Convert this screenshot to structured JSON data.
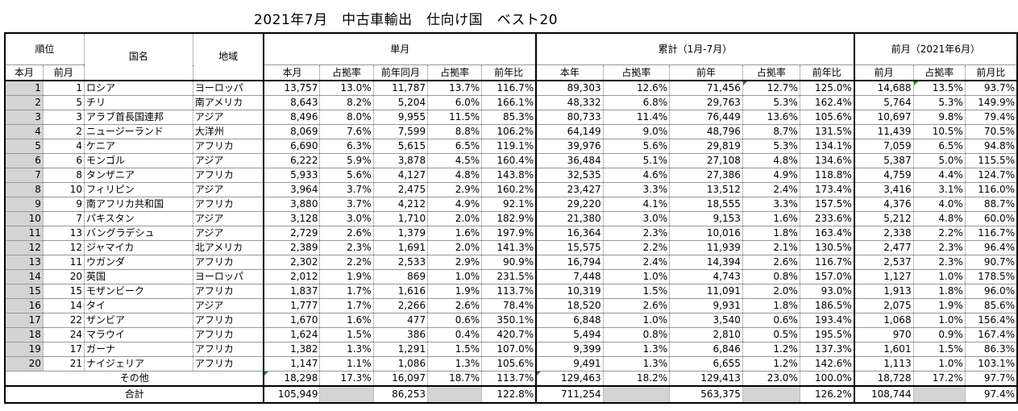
{
  "title": "2021年7月　中古車輸出　仕向け国　ベスト20",
  "header": {
    "rank": "順位",
    "country": "国名",
    "region": "地域",
    "monthly": "単月",
    "cumulative": "累計（1月-7月）",
    "prev_month_group": "前月（2021年6月）",
    "sub": {
      "rank_current": "本月",
      "rank_prev": "前月",
      "this_month": "本月",
      "share1": "占拠率",
      "prev_year_same_month": "前年同月",
      "share2": "占拠率",
      "yoy1": "前年比",
      "this_year": "本年",
      "share3": "占拠率",
      "prev_year": "前年",
      "share4": "占拠率",
      "yoy2": "前年比",
      "prev_month": "前月",
      "share5": "占拠率",
      "mom": "前月比"
    }
  },
  "rows": [
    {
      "rank": "1",
      "prev_rank": "1",
      "country": "ロシア",
      "region": "ヨーロッパ",
      "m": "13,757",
      "ms": "13.0%",
      "py": "11,787",
      "pys": "13.7%",
      "yoy": "116.7%",
      "cy": "89,303",
      "cys": "12.6%",
      "cp": "71,456",
      "cps": "12.7%",
      "cyoy": "125.0%",
      "pm": "14,688",
      "pms": "13.5%",
      "mom": "93.7%"
    },
    {
      "rank": "2",
      "prev_rank": "5",
      "country": "チリ",
      "region": "南アメリカ",
      "m": "8,643",
      "ms": "8.2%",
      "py": "5,204",
      "pys": "6.0%",
      "yoy": "166.1%",
      "cy": "48,332",
      "cys": "6.8%",
      "cp": "29,763",
      "cps": "5.3%",
      "cyoy": "162.4%",
      "pm": "5,764",
      "pms": "5.3%",
      "mom": "149.9%"
    },
    {
      "rank": "3",
      "prev_rank": "3",
      "country": "アラブ首長国連邦",
      "region": "アジア",
      "m": "8,496",
      "ms": "8.0%",
      "py": "9,955",
      "pys": "11.5%",
      "yoy": "85.3%",
      "cy": "80,733",
      "cys": "11.4%",
      "cp": "76,449",
      "cps": "13.6%",
      "cyoy": "105.6%",
      "pm": "10,697",
      "pms": "9.8%",
      "mom": "79.4%"
    },
    {
      "rank": "4",
      "prev_rank": "2",
      "country": "ニュージーランド",
      "region": "大洋州",
      "m": "8,069",
      "ms": "7.6%",
      "py": "7,599",
      "pys": "8.8%",
      "yoy": "106.2%",
      "cy": "64,149",
      "cys": "9.0%",
      "cp": "48,796",
      "cps": "8.7%",
      "cyoy": "131.5%",
      "pm": "11,439",
      "pms": "10.5%",
      "mom": "70.5%"
    },
    {
      "rank": "5",
      "prev_rank": "4",
      "country": "ケニア",
      "region": "アフリカ",
      "m": "6,690",
      "ms": "6.3%",
      "py": "5,615",
      "pys": "6.5%",
      "yoy": "119.1%",
      "cy": "39,976",
      "cys": "5.6%",
      "cp": "29,819",
      "cps": "5.3%",
      "cyoy": "134.1%",
      "pm": "7,059",
      "pms": "6.5%",
      "mom": "94.8%"
    },
    {
      "rank": "6",
      "prev_rank": "6",
      "country": "モンゴル",
      "region": "アジア",
      "m": "6,222",
      "ms": "5.9%",
      "py": "3,878",
      "pys": "4.5%",
      "yoy": "160.4%",
      "cy": "36,484",
      "cys": "5.1%",
      "cp": "27,108",
      "cps": "4.8%",
      "cyoy": "134.6%",
      "pm": "5,387",
      "pms": "5.0%",
      "mom": "115.5%"
    },
    {
      "rank": "7",
      "prev_rank": "8",
      "country": "タンザニア",
      "region": "アフリカ",
      "m": "5,933",
      "ms": "5.6%",
      "py": "4,127",
      "pys": "4.8%",
      "yoy": "143.8%",
      "cy": "32,535",
      "cys": "4.6%",
      "cp": "27,386",
      "cps": "4.9%",
      "cyoy": "118.8%",
      "pm": "4,759",
      "pms": "4.4%",
      "mom": "124.7%"
    },
    {
      "rank": "8",
      "prev_rank": "10",
      "country": "フィリピン",
      "region": "アジア",
      "m": "3,964",
      "ms": "3.7%",
      "py": "2,475",
      "pys": "2.9%",
      "yoy": "160.2%",
      "cy": "23,427",
      "cys": "3.3%",
      "cp": "13,512",
      "cps": "2.4%",
      "cyoy": "173.4%",
      "pm": "3,416",
      "pms": "3.1%",
      "mom": "116.0%"
    },
    {
      "rank": "9",
      "prev_rank": "9",
      "country": "南アフリカ共和国",
      "region": "アフリカ",
      "m": "3,880",
      "ms": "3.7%",
      "py": "4,212",
      "pys": "4.9%",
      "yoy": "92.1%",
      "cy": "29,220",
      "cys": "4.1%",
      "cp": "18,555",
      "cps": "3.3%",
      "cyoy": "157.5%",
      "pm": "4,376",
      "pms": "4.0%",
      "mom": "88.7%"
    },
    {
      "rank": "10",
      "prev_rank": "7",
      "country": "パキスタン",
      "region": "アジア",
      "m": "3,128",
      "ms": "3.0%",
      "py": "1,710",
      "pys": "2.0%",
      "yoy": "182.9%",
      "cy": "21,380",
      "cys": "3.0%",
      "cp": "9,153",
      "cps": "1.6%",
      "cyoy": "233.6%",
      "pm": "5,212",
      "pms": "4.8%",
      "mom": "60.0%"
    },
    {
      "rank": "11",
      "prev_rank": "13",
      "country": "バングラデシュ",
      "region": "アジア",
      "m": "2,729",
      "ms": "2.6%",
      "py": "1,379",
      "pys": "1.6%",
      "yoy": "197.9%",
      "cy": "16,364",
      "cys": "2.3%",
      "cp": "10,016",
      "cps": "1.8%",
      "cyoy": "163.4%",
      "pm": "2,338",
      "pms": "2.2%",
      "mom": "116.7%"
    },
    {
      "rank": "12",
      "prev_rank": "12",
      "country": "ジャマイカ",
      "region": "北アメリカ",
      "m": "2,389",
      "ms": "2.3%",
      "py": "1,691",
      "pys": "2.0%",
      "yoy": "141.3%",
      "cy": "15,575",
      "cys": "2.2%",
      "cp": "11,939",
      "cps": "2.1%",
      "cyoy": "130.5%",
      "pm": "2,477",
      "pms": "2.3%",
      "mom": "96.4%"
    },
    {
      "rank": "13",
      "prev_rank": "11",
      "country": "ウガンダ",
      "region": "アフリカ",
      "m": "2,302",
      "ms": "2.2%",
      "py": "2,533",
      "pys": "2.9%",
      "yoy": "90.9%",
      "cy": "16,794",
      "cys": "2.4%",
      "cp": "14,394",
      "cps": "2.6%",
      "cyoy": "116.7%",
      "pm": "2,537",
      "pms": "2.3%",
      "mom": "90.7%"
    },
    {
      "rank": "14",
      "prev_rank": "20",
      "country": "英国",
      "region": "ヨーロッパ",
      "m": "2,012",
      "ms": "1.9%",
      "py": "869",
      "pys": "1.0%",
      "yoy": "231.5%",
      "cy": "7,448",
      "cys": "1.0%",
      "cp": "4,743",
      "cps": "0.8%",
      "cyoy": "157.0%",
      "pm": "1,127",
      "pms": "1.0%",
      "mom": "178.5%"
    },
    {
      "rank": "15",
      "prev_rank": "15",
      "country": "モザンビーク",
      "region": "アフリカ",
      "m": "1,837",
      "ms": "1.7%",
      "py": "1,616",
      "pys": "1.9%",
      "yoy": "113.7%",
      "cy": "10,319",
      "cys": "1.5%",
      "cp": "11,091",
      "cps": "2.0%",
      "cyoy": "93.0%",
      "pm": "1,913",
      "pms": "1.8%",
      "mom": "96.0%"
    },
    {
      "rank": "16",
      "prev_rank": "14",
      "country": "タイ",
      "region": "アジア",
      "m": "1,777",
      "ms": "1.7%",
      "py": "2,266",
      "pys": "2.6%",
      "yoy": "78.4%",
      "cy": "18,520",
      "cys": "2.6%",
      "cp": "9,931",
      "cps": "1.8%",
      "cyoy": "186.5%",
      "pm": "2,075",
      "pms": "1.9%",
      "mom": "85.6%"
    },
    {
      "rank": "17",
      "prev_rank": "22",
      "country": "ザンビア",
      "region": "アフリカ",
      "m": "1,670",
      "ms": "1.6%",
      "py": "477",
      "pys": "0.6%",
      "yoy": "350.1%",
      "cy": "6,848",
      "cys": "1.0%",
      "cp": "3,540",
      "cps": "0.6%",
      "cyoy": "193.4%",
      "pm": "1,068",
      "pms": "1.0%",
      "mom": "156.4%"
    },
    {
      "rank": "18",
      "prev_rank": "24",
      "country": "マラウイ",
      "region": "アフリカ",
      "m": "1,624",
      "ms": "1.5%",
      "py": "386",
      "pys": "0.4%",
      "yoy": "420.7%",
      "cy": "5,494",
      "cys": "0.8%",
      "cp": "2,810",
      "cps": "0.5%",
      "cyoy": "195.5%",
      "pm": "970",
      "pms": "0.9%",
      "mom": "167.4%"
    },
    {
      "rank": "19",
      "prev_rank": "17",
      "country": "ガーナ",
      "region": "アフリカ",
      "m": "1,382",
      "ms": "1.3%",
      "py": "1,291",
      "pys": "1.5%",
      "yoy": "107.0%",
      "cy": "9,399",
      "cys": "1.3%",
      "cp": "6,846",
      "cps": "1.2%",
      "cyoy": "137.3%",
      "pm": "1,601",
      "pms": "1.5%",
      "mom": "86.3%"
    },
    {
      "rank": "20",
      "prev_rank": "21",
      "country": "ナイジェリア",
      "region": "アフリカ",
      "m": "1,147",
      "ms": "1.1%",
      "py": "1,086",
      "pys": "1.3%",
      "yoy": "105.6%",
      "cy": "9,491",
      "cys": "1.3%",
      "cp": "6,655",
      "cps": "1.2%",
      "cyoy": "142.6%",
      "pm": "1,113",
      "pms": "1.0%",
      "mom": "103.1%"
    }
  ],
  "other": {
    "label": "その他",
    "m": "18,298",
    "ms": "17.3%",
    "py": "16,097",
    "pys": "18.7%",
    "yoy": "113.7%",
    "cy": "129,463",
    "cys": "18.2%",
    "cp": "129,413",
    "cps": "23.0%",
    "cyoy": "100.0%",
    "pm": "18,728",
    "pms": "17.2%",
    "mom": "97.7%"
  },
  "total": {
    "label": "合計",
    "m": "105,949",
    "py": "86,253",
    "yoy": "122.8%",
    "cy": "711,254",
    "cp": "563,375",
    "cyoy": "126.2%",
    "pm": "108,744",
    "mom": "97.4%"
  }
}
